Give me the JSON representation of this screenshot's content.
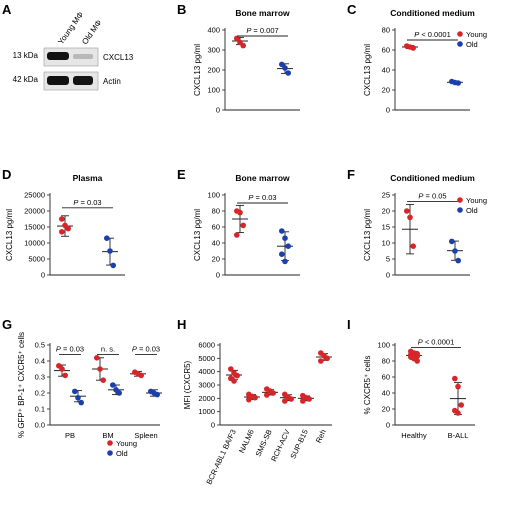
{
  "colors": {
    "young": "#d7262a",
    "old": "#1c3fae",
    "line": "#222222"
  },
  "panelA": {
    "label": "A",
    "lanes": [
      "Young MΦ",
      "Old MΦ"
    ],
    "markers": [
      "13 kDa",
      "42 kDa"
    ],
    "bands": [
      "CXCL13",
      "Actin"
    ]
  },
  "chart_data": [
    {
      "id": "B",
      "label": "B",
      "type": "scatter",
      "title": "Bone marrow",
      "ylabel": "CXCL13 pg/ml",
      "ylim": [
        0,
        400
      ],
      "yticks": [
        0,
        100,
        200,
        300,
        400
      ],
      "groups": [
        {
          "name": "Young",
          "color": "young",
          "points": [
            358,
            338,
            322
          ],
          "mean": 345,
          "sd": 18
        },
        {
          "name": "Old",
          "color": "old",
          "points": [
            228,
            210,
            185
          ],
          "mean": 207,
          "sd": 24
        }
      ],
      "annotations": [
        {
          "text": "P = 0.007",
          "from": 0,
          "to": 1,
          "y": 370
        }
      ]
    },
    {
      "id": "C",
      "label": "C",
      "type": "scatter",
      "title": "Conditioned medium",
      "ylabel": "CXCL13 pg/ml",
      "ylim": [
        0,
        80
      ],
      "yticks": [
        0,
        20,
        40,
        60,
        80
      ],
      "groups": [
        {
          "name": "Young",
          "color": "young",
          "points": [
            64,
            63,
            62
          ],
          "mean": 63,
          "sd": 1.5
        },
        {
          "name": "Old",
          "color": "old",
          "points": [
            28.5,
            27.5,
            27
          ],
          "mean": 27.7,
          "sd": 1
        },
        {
          "name": "",
          "color": "old",
          "points": [],
          "mean": null,
          "sd": null
        }
      ],
      "annotations": [
        {
          "text": "P < 0.0001",
          "from": 0,
          "to": 1,
          "y": 70
        }
      ],
      "legend": {
        "position": "top-right",
        "entries": [
          "Young",
          "Old"
        ]
      }
    },
    {
      "id": "D",
      "label": "D",
      "type": "scatter",
      "title": "Plasma",
      "ylabel": "CXCL13 pg/ml",
      "ylim": [
        0,
        25000
      ],
      "yticks": [
        0,
        5000,
        10000,
        15000,
        20000,
        25000
      ],
      "groups": [
        {
          "name": "Young",
          "color": "young",
          "points": [
            17500,
            15500,
            14500,
            13500
          ],
          "mean": 15300,
          "sd": 3200
        },
        {
          "name": "Old",
          "color": "old",
          "points": [
            11500,
            7500,
            3000
          ],
          "mean": 7300,
          "sd": 4200
        }
      ],
      "annotations": [
        {
          "text": "P = 0.03",
          "from": 0,
          "to": 1,
          "y": 21000
        }
      ]
    },
    {
      "id": "E",
      "label": "E",
      "type": "scatter",
      "title": "Bone marrow",
      "ylabel": "CXCL13 pg/ml",
      "ylim": [
        0,
        100
      ],
      "yticks": [
        0,
        20,
        40,
        60,
        80,
        100
      ],
      "groups": [
        {
          "name": "Young",
          "color": "young",
          "points": [
            80,
            78,
            62,
            50
          ],
          "mean": 70,
          "sd": 17
        },
        {
          "name": "Old",
          "color": "old",
          "points": [
            55,
            46,
            36,
            26,
            17
          ],
          "mean": 36,
          "sd": 18
        }
      ],
      "annotations": [
        {
          "text": "P = 0.03",
          "from": 0,
          "to": 1,
          "y": 90
        }
      ]
    },
    {
      "id": "F",
      "label": "F",
      "type": "scatter",
      "title": "Conditioned medium",
      "ylabel": "CXCL13 pg/ml",
      "ylim": [
        0,
        25
      ],
      "yticks": [
        0,
        5,
        10,
        15,
        20,
        25
      ],
      "groups": [
        {
          "name": "Young",
          "color": "young",
          "points": [
            20,
            18,
            9
          ],
          "mean": 14.3,
          "sd": 7.7
        },
        {
          "name": "Old",
          "color": "old",
          "points": [
            10.5,
            7.5,
            4.5
          ],
          "mean": 7.6,
          "sd": 3
        }
      ],
      "annotations": [
        {
          "text": "P = 0.05",
          "from": 0,
          "to": 1,
          "y": 23
        }
      ],
      "legend": {
        "position": "top-right",
        "entries": [
          "Young",
          "Old"
        ]
      }
    },
    {
      "id": "G",
      "label": "G",
      "type": "scatter",
      "title": "",
      "ylabel": "% GFP⁺ BP-1⁺ CXCR5⁺ cells",
      "ylim": [
        0,
        0.5
      ],
      "yticks": [
        0.0,
        0.1,
        0.2,
        0.3,
        0.4,
        0.5
      ],
      "categories": [
        "PB",
        "BM",
        "Spleen"
      ],
      "groups": [
        {
          "name": "Young",
          "color": "young",
          "cat": 0,
          "points": [
            0.37,
            0.35,
            0.31
          ],
          "mean": 0.34,
          "sd": 0.035
        },
        {
          "name": "Old",
          "color": "old",
          "cat": 0,
          "points": [
            0.21,
            0.17,
            0.14
          ],
          "mean": 0.18,
          "sd": 0.035
        },
        {
          "name": "Young",
          "color": "young",
          "cat": 1,
          "points": [
            0.42,
            0.35,
            0.28
          ],
          "mean": 0.35,
          "sd": 0.07
        },
        {
          "name": "Old",
          "color": "old",
          "cat": 1,
          "points": [
            0.25,
            0.22,
            0.2
          ],
          "mean": 0.22,
          "sd": 0.03
        },
        {
          "name": "Young",
          "color": "young",
          "cat": 2,
          "points": [
            0.33,
            0.32,
            0.31
          ],
          "mean": 0.32,
          "sd": 0.015
        },
        {
          "name": "Old",
          "color": "old",
          "cat": 2,
          "points": [
            0.21,
            0.2,
            0.19
          ],
          "mean": 0.2,
          "sd": 0.02
        }
      ],
      "annotations": [
        {
          "text": "P = 0.03",
          "from": 0,
          "to": 1,
          "y": 0.44
        },
        {
          "text": "n. s.",
          "from": 2,
          "to": 3,
          "y": 0.44
        },
        {
          "text": "P = 0.03",
          "from": 4,
          "to": 5,
          "y": 0.44
        }
      ],
      "legend": {
        "position": "bottom-right",
        "entries": [
          "Young",
          "Old"
        ]
      }
    },
    {
      "id": "H",
      "label": "H",
      "type": "scatter",
      "title": "",
      "ylabel": "MFI (CXCR5)",
      "ylim": [
        0,
        6000
      ],
      "yticks": [
        0,
        1000,
        2000,
        3000,
        4000,
        5000,
        6000
      ],
      "categories": [
        "BCR-ABL1 BA/F3",
        "NALM6",
        "SMS-SB",
        "RCH-ACV",
        "SUP-B15",
        "Reh"
      ],
      "groups": [
        {
          "name": "BCR-ABL1 BA/F3",
          "color": "young",
          "cat": 0,
          "points": [
            4200,
            3900,
            3700,
            3500,
            3300
          ],
          "mean": 3750,
          "sd": 350
        },
        {
          "name": "NALM6",
          "color": "young",
          "cat": 1,
          "points": [
            2300,
            2150,
            2050,
            1900
          ],
          "mean": 2100,
          "sd": 180
        },
        {
          "name": "SMS-SB",
          "color": "young",
          "cat": 2,
          "points": [
            2700,
            2550,
            2400,
            2250
          ],
          "mean": 2450,
          "sd": 200
        },
        {
          "name": "RCH-ACV",
          "color": "young",
          "cat": 3,
          "points": [
            2300,
            2100,
            1950,
            1800
          ],
          "mean": 2050,
          "sd": 220
        },
        {
          "name": "SUP-B15",
          "color": "young",
          "cat": 4,
          "points": [
            2200,
            2050,
            1950,
            1800
          ],
          "mean": 2000,
          "sd": 180
        },
        {
          "name": "Reh",
          "color": "young",
          "cat": 5,
          "points": [
            5400,
            5200,
            5000,
            4800
          ],
          "mean": 5100,
          "sd": 250
        }
      ]
    },
    {
      "id": "I",
      "label": "I",
      "type": "scatter",
      "title": "",
      "ylabel": "% CXCR5⁺ cells",
      "ylim": [
        0,
        100
      ],
      "yticks": [
        0,
        20,
        40,
        60,
        80,
        100
      ],
      "categories": [
        "Healthy",
        "B-ALL"
      ],
      "groups": [
        {
          "name": "Healthy",
          "color": "young",
          "cat": 0,
          "points": [
            92,
            90,
            89,
            88,
            87,
            86,
            85,
            83,
            80
          ],
          "mean": 87,
          "sd": 5
        },
        {
          "name": "B-ALL",
          "color": "young",
          "cat": 1,
          "points": [
            58,
            48,
            25,
            18,
            15
          ],
          "mean": 33,
          "sd": 20
        }
      ],
      "annotations": [
        {
          "text": "P < 0.0001",
          "from": 0,
          "to": 1,
          "y": 97
        }
      ]
    }
  ]
}
